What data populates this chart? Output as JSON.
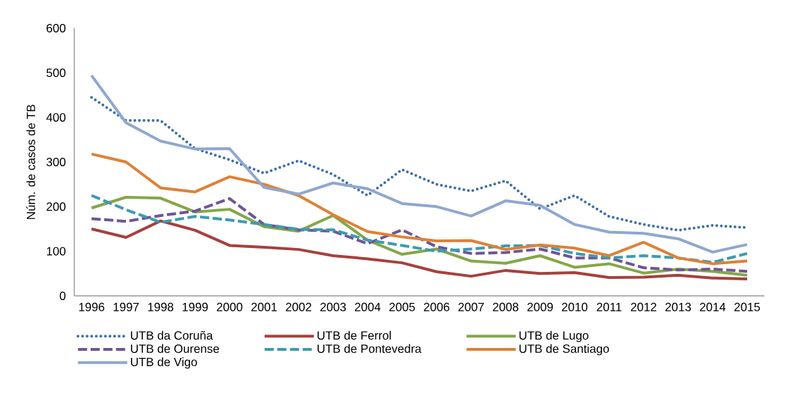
{
  "chart_data": {
    "type": "line",
    "ylabel": "Núm. de casos de TB",
    "categories": [
      "1996",
      "1997",
      "1998",
      "1999",
      "2000",
      "2001",
      "2002",
      "2003",
      "2004",
      "2005",
      "2006",
      "2007",
      "2008",
      "2009",
      "2010",
      "2011",
      "2012",
      "2013",
      "2014",
      "2015"
    ],
    "ylim": [
      0,
      600
    ],
    "yticks": [
      0,
      100,
      200,
      300,
      400,
      500,
      600
    ],
    "grid": false,
    "legend": "bottom",
    "marker": "none",
    "series": [
      {
        "name": "UTB da Coruña",
        "color": "#3f6eaa",
        "line_style": "dotted",
        "values": [
          445,
          393,
          393,
          330,
          305,
          275,
          303,
          272,
          225,
          283,
          250,
          235,
          258,
          195,
          225,
          178,
          160,
          147,
          158,
          153
        ]
      },
      {
        "name": "UTB de Ferrol",
        "color": "#a6403d",
        "line_style": "solid",
        "values": [
          150,
          131,
          168,
          147,
          113,
          109,
          104,
          90,
          83,
          74,
          54,
          44,
          57,
          50,
          52,
          41,
          42,
          46,
          40,
          38
        ]
      },
      {
        "name": "UTB de Lugo",
        "color": "#84a748",
        "line_style": "solid",
        "values": [
          197,
          221,
          219,
          188,
          194,
          155,
          145,
          180,
          125,
          93,
          105,
          78,
          73,
          90,
          64,
          72,
          51,
          60,
          55,
          46
        ]
      },
      {
        "name": "UTB de Ourense",
        "color": "#6f5597",
        "line_style": "dashed",
        "values": [
          173,
          167,
          180,
          190,
          218,
          160,
          148,
          145,
          117,
          148,
          110,
          95,
          97,
          105,
          85,
          85,
          63,
          58,
          60,
          55
        ]
      },
      {
        "name": "UTB de Pontevedra",
        "color": "#3d9bb0",
        "line_style": "dashed",
        "values": [
          225,
          193,
          165,
          178,
          170,
          160,
          149,
          148,
          125,
          113,
          100,
          105,
          112,
          113,
          95,
          85,
          90,
          85,
          75,
          95
        ]
      },
      {
        "name": "UTB de Santiago",
        "color": "#de8136",
        "line_style": "solid",
        "values": [
          318,
          300,
          242,
          233,
          267,
          250,
          225,
          182,
          144,
          132,
          123,
          124,
          104,
          114,
          107,
          90,
          120,
          85,
          72,
          78
        ]
      },
      {
        "name": "UTB de Vigo",
        "color": "#8fa7cf",
        "line_style": "solid",
        "values": [
          494,
          388,
          347,
          329,
          330,
          243,
          228,
          253,
          240,
          207,
          200,
          179,
          213,
          203,
          160,
          143,
          140,
          128,
          98,
          115
        ]
      }
    ]
  }
}
